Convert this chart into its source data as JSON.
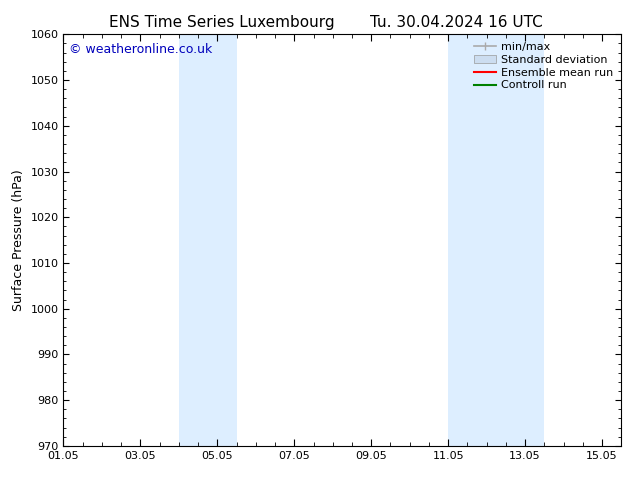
{
  "title_left": "ENS Time Series Luxembourg",
  "title_right": "Tu. 30.04.2024 16 UTC",
  "ylabel": "Surface Pressure (hPa)",
  "ylim": [
    970,
    1060
  ],
  "yticks": [
    970,
    980,
    990,
    1000,
    1010,
    1020,
    1030,
    1040,
    1050,
    1060
  ],
  "xlim": [
    0,
    14.5
  ],
  "xtick_labels": [
    "01.05",
    "03.05",
    "05.05",
    "07.05",
    "09.05",
    "11.05",
    "13.05",
    "15.05"
  ],
  "xtick_positions": [
    0,
    2,
    4,
    6,
    8,
    10,
    12,
    14
  ],
  "shaded_regions": [
    {
      "x_start": 3.0,
      "x_end": 4.5,
      "color": "#ddeeff"
    },
    {
      "x_start": 10.0,
      "x_end": 11.5,
      "color": "#ddeeff"
    },
    {
      "x_start": 11.5,
      "x_end": 12.5,
      "color": "#ddeeff"
    }
  ],
  "watermark_text": "© weatheronline.co.uk",
  "watermark_color": "#0000bb",
  "background_color": "#ffffff",
  "legend_entries": [
    {
      "label": "min/max",
      "color": "#aaaaaa",
      "type": "errorbar"
    },
    {
      "label": "Standard deviation",
      "color": "#ccddf0",
      "type": "band"
    },
    {
      "label": "Ensemble mean run",
      "color": "#ff0000",
      "type": "line"
    },
    {
      "label": "Controll run",
      "color": "#008000",
      "type": "line"
    }
  ],
  "title_fontsize": 11,
  "tick_fontsize": 8,
  "ylabel_fontsize": 9,
  "legend_fontsize": 8,
  "watermark_fontsize": 9
}
